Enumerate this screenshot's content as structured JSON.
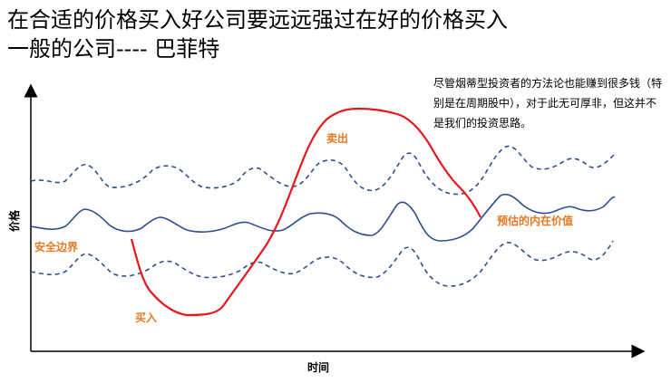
{
  "title_line1": "在合适的价格买入好公司要远远强过在好的价格买入",
  "title_line2": "一般的公司---- 巴菲特",
  "note": "尽管烟蒂型投资者的方法论也能赚到很多钱（特别是在周期股中），对于此无可厚非，但这并不是我们的投资思路。",
  "labels": {
    "sell": "卖出",
    "buy": "买入",
    "intrinsic_value": "预估的内在价值",
    "safety_margin": "安全边界"
  },
  "axes": {
    "y": "价格",
    "x": "时间"
  },
  "colors": {
    "value_line": "#2F4F8F",
    "trade_line": "#E8161B",
    "label": "#E87722"
  }
}
